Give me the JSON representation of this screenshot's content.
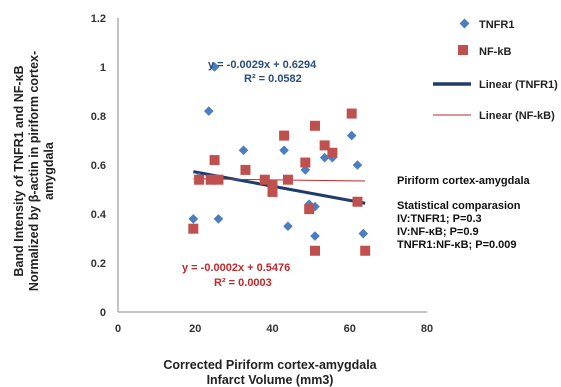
{
  "chart_data": {
    "type": "scatter",
    "xlabel_lines": [
      "Corrected  Piriform cortex-amygdala",
      "Infarct Volume (mm3)"
    ],
    "ylabel_lines": [
      "Band Intensity of TNFR1 and NF-κB",
      "Normalized by β-actin in piriform cortex-",
      "amygdala"
    ],
    "xlim": [
      0,
      80
    ],
    "ylim": [
      0,
      1.2
    ],
    "xticks": [
      0,
      20,
      40,
      60,
      80
    ],
    "yticks": [
      0,
      0.2,
      0.4,
      0.6,
      0.8,
      1,
      1.2
    ],
    "xtick_labels": [
      "0",
      "20",
      "40",
      "60",
      "80"
    ],
    "ytick_labels": [
      "0",
      "0.2",
      "0.4",
      "0.6",
      "0.8",
      "1",
      "1.2"
    ],
    "grid": false,
    "legend_position": "right",
    "series": [
      {
        "name": "TNFR1",
        "marker": "diamond",
        "color": "#4a7ec0",
        "points": [
          {
            "x": 19.5,
            "y": 0.38
          },
          {
            "x": 21,
            "y": 0.55
          },
          {
            "x": 23.5,
            "y": 0.82
          },
          {
            "x": 25,
            "y": 1.0
          },
          {
            "x": 26,
            "y": 0.38
          },
          {
            "x": 32.5,
            "y": 0.66
          },
          {
            "x": 43,
            "y": 0.66
          },
          {
            "x": 44,
            "y": 0.35
          },
          {
            "x": 48.5,
            "y": 0.58
          },
          {
            "x": 49.5,
            "y": 0.44
          },
          {
            "x": 51,
            "y": 0.31
          },
          {
            "x": 51,
            "y": 0.43
          },
          {
            "x": 53.5,
            "y": 0.63
          },
          {
            "x": 55.5,
            "y": 0.63
          },
          {
            "x": 60.5,
            "y": 0.72
          },
          {
            "x": 62,
            "y": 0.6
          },
          {
            "x": 63.5,
            "y": 0.32
          }
        ]
      },
      {
        "name": "NF-kB",
        "marker": "square",
        "color": "#c0504d",
        "points": [
          {
            "x": 19.5,
            "y": 0.34
          },
          {
            "x": 21,
            "y": 0.54
          },
          {
            "x": 24,
            "y": 0.54
          },
          {
            "x": 25,
            "y": 0.62
          },
          {
            "x": 26,
            "y": 0.54
          },
          {
            "x": 33,
            "y": 0.58
          },
          {
            "x": 38,
            "y": 0.54
          },
          {
            "x": 40,
            "y": 0.52
          },
          {
            "x": 40,
            "y": 0.49
          },
          {
            "x": 43,
            "y": 0.72
          },
          {
            "x": 44,
            "y": 0.54
          },
          {
            "x": 48.5,
            "y": 0.61
          },
          {
            "x": 49.5,
            "y": 0.42
          },
          {
            "x": 51,
            "y": 0.76
          },
          {
            "x": 51,
            "y": 0.25
          },
          {
            "x": 53.5,
            "y": 0.68
          },
          {
            "x": 55.5,
            "y": 0.65
          },
          {
            "x": 60.5,
            "y": 0.81
          },
          {
            "x": 62,
            "y": 0.45
          },
          {
            "x": 64,
            "y": 0.25
          }
        ]
      }
    ],
    "trendlines": [
      {
        "name": "Linear (TNFR1)",
        "slope": -0.0029,
        "intercept": 0.6294,
        "x_range": [
          19.5,
          64
        ],
        "color": "#1f3d6b",
        "equation": "y = -0.0029x + 0.6294",
        "r2": "R² = 0.0582"
      },
      {
        "name": "Linear (NF-kB)",
        "slope": -0.0002,
        "intercept": 0.5476,
        "x_range": [
          19.5,
          64
        ],
        "color": "#c0282c",
        "equation": "y = -0.0002x + 0.5476",
        "r2": "R² = 0.0003"
      }
    ],
    "legend": [
      "TNFR1",
      "NF-kB",
      "Linear (TNFR1)",
      "Linear (NF-kB)"
    ],
    "annotations": {
      "region": "Piriform cortex-amygdala",
      "stats_title": "Statistical comparasion",
      "stats": [
        "IV:TNFR1; P=0.3",
        "IV:NF-κB;  P=0.9",
        "TNFR1:NF-κB; P=0.009"
      ]
    }
  }
}
